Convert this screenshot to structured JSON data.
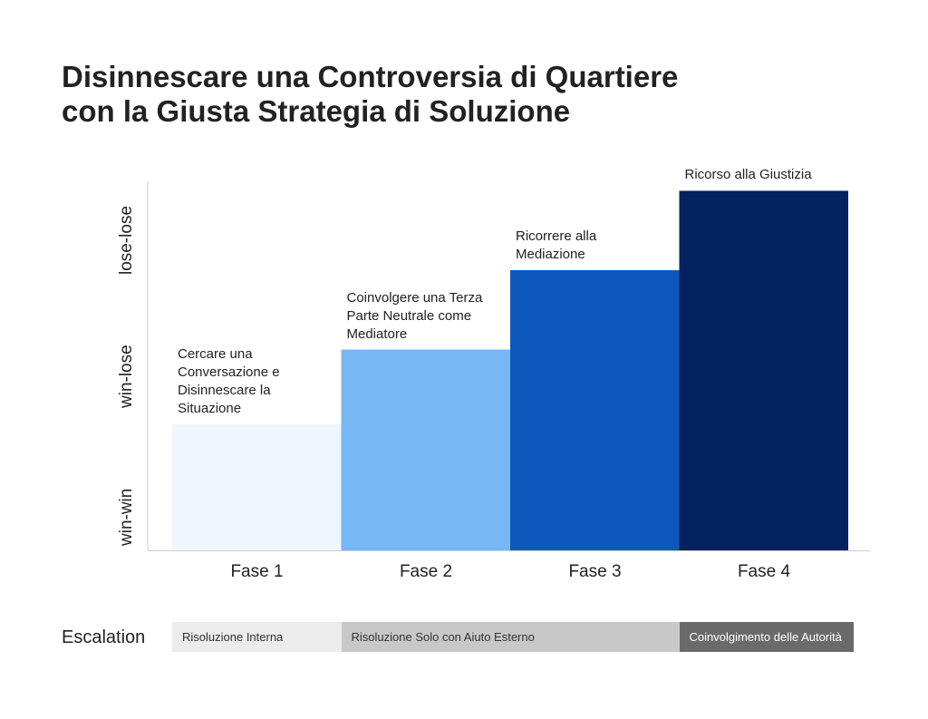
{
  "title_lines": [
    "Disinnescare una Controversia di Quartiere",
    "con la Giusta Strategia di Soluzione"
  ],
  "chart_data": {
    "type": "bar",
    "title": "Disinnescare una Controversia di Quartiere con la Giusta Strategia di Soluzione",
    "categories": [
      "Fase 1",
      "Fase 2",
      "Fase 3",
      "Fase 4"
    ],
    "values": [
      1.35,
      2.15,
      3.0,
      3.85
    ],
    "ylim": [
      0,
      4
    ],
    "y_tick_labels": [
      "win-win",
      "win-lose",
      "lose-lose"
    ],
    "bar_labels": [
      [
        "Cercare una",
        "Conversazione e",
        "Disinnescare la",
        "Situazione"
      ],
      [
        "Coinvolgere una Terza",
        "Parte Neutrale come",
        "Mediatore"
      ],
      [
        "Ricorrere alla",
        "Mediazione"
      ],
      [
        "Ricorso alla Giustizia"
      ]
    ],
    "bar_colors": [
      "#eef6fe",
      "#77b7f3",
      "#0d57bd",
      "#03225f"
    ],
    "grid": false,
    "legend": "none"
  },
  "escalation": {
    "label": "Escalation",
    "segments": [
      {
        "label": "Risoluzione Interna",
        "from": 0,
        "to": 1,
        "bg": "#ececec",
        "fg": "#333333"
      },
      {
        "label": "Risoluzione Solo con Aiuto Esterno",
        "from": 1,
        "to": 3,
        "bg": "#c8c8c8",
        "fg": "#333333"
      },
      {
        "label": "Coinvolgimento delle Autorità",
        "from": 3,
        "to": 4,
        "bg": "#6a6a6a",
        "fg": "#ffffff"
      }
    ]
  }
}
